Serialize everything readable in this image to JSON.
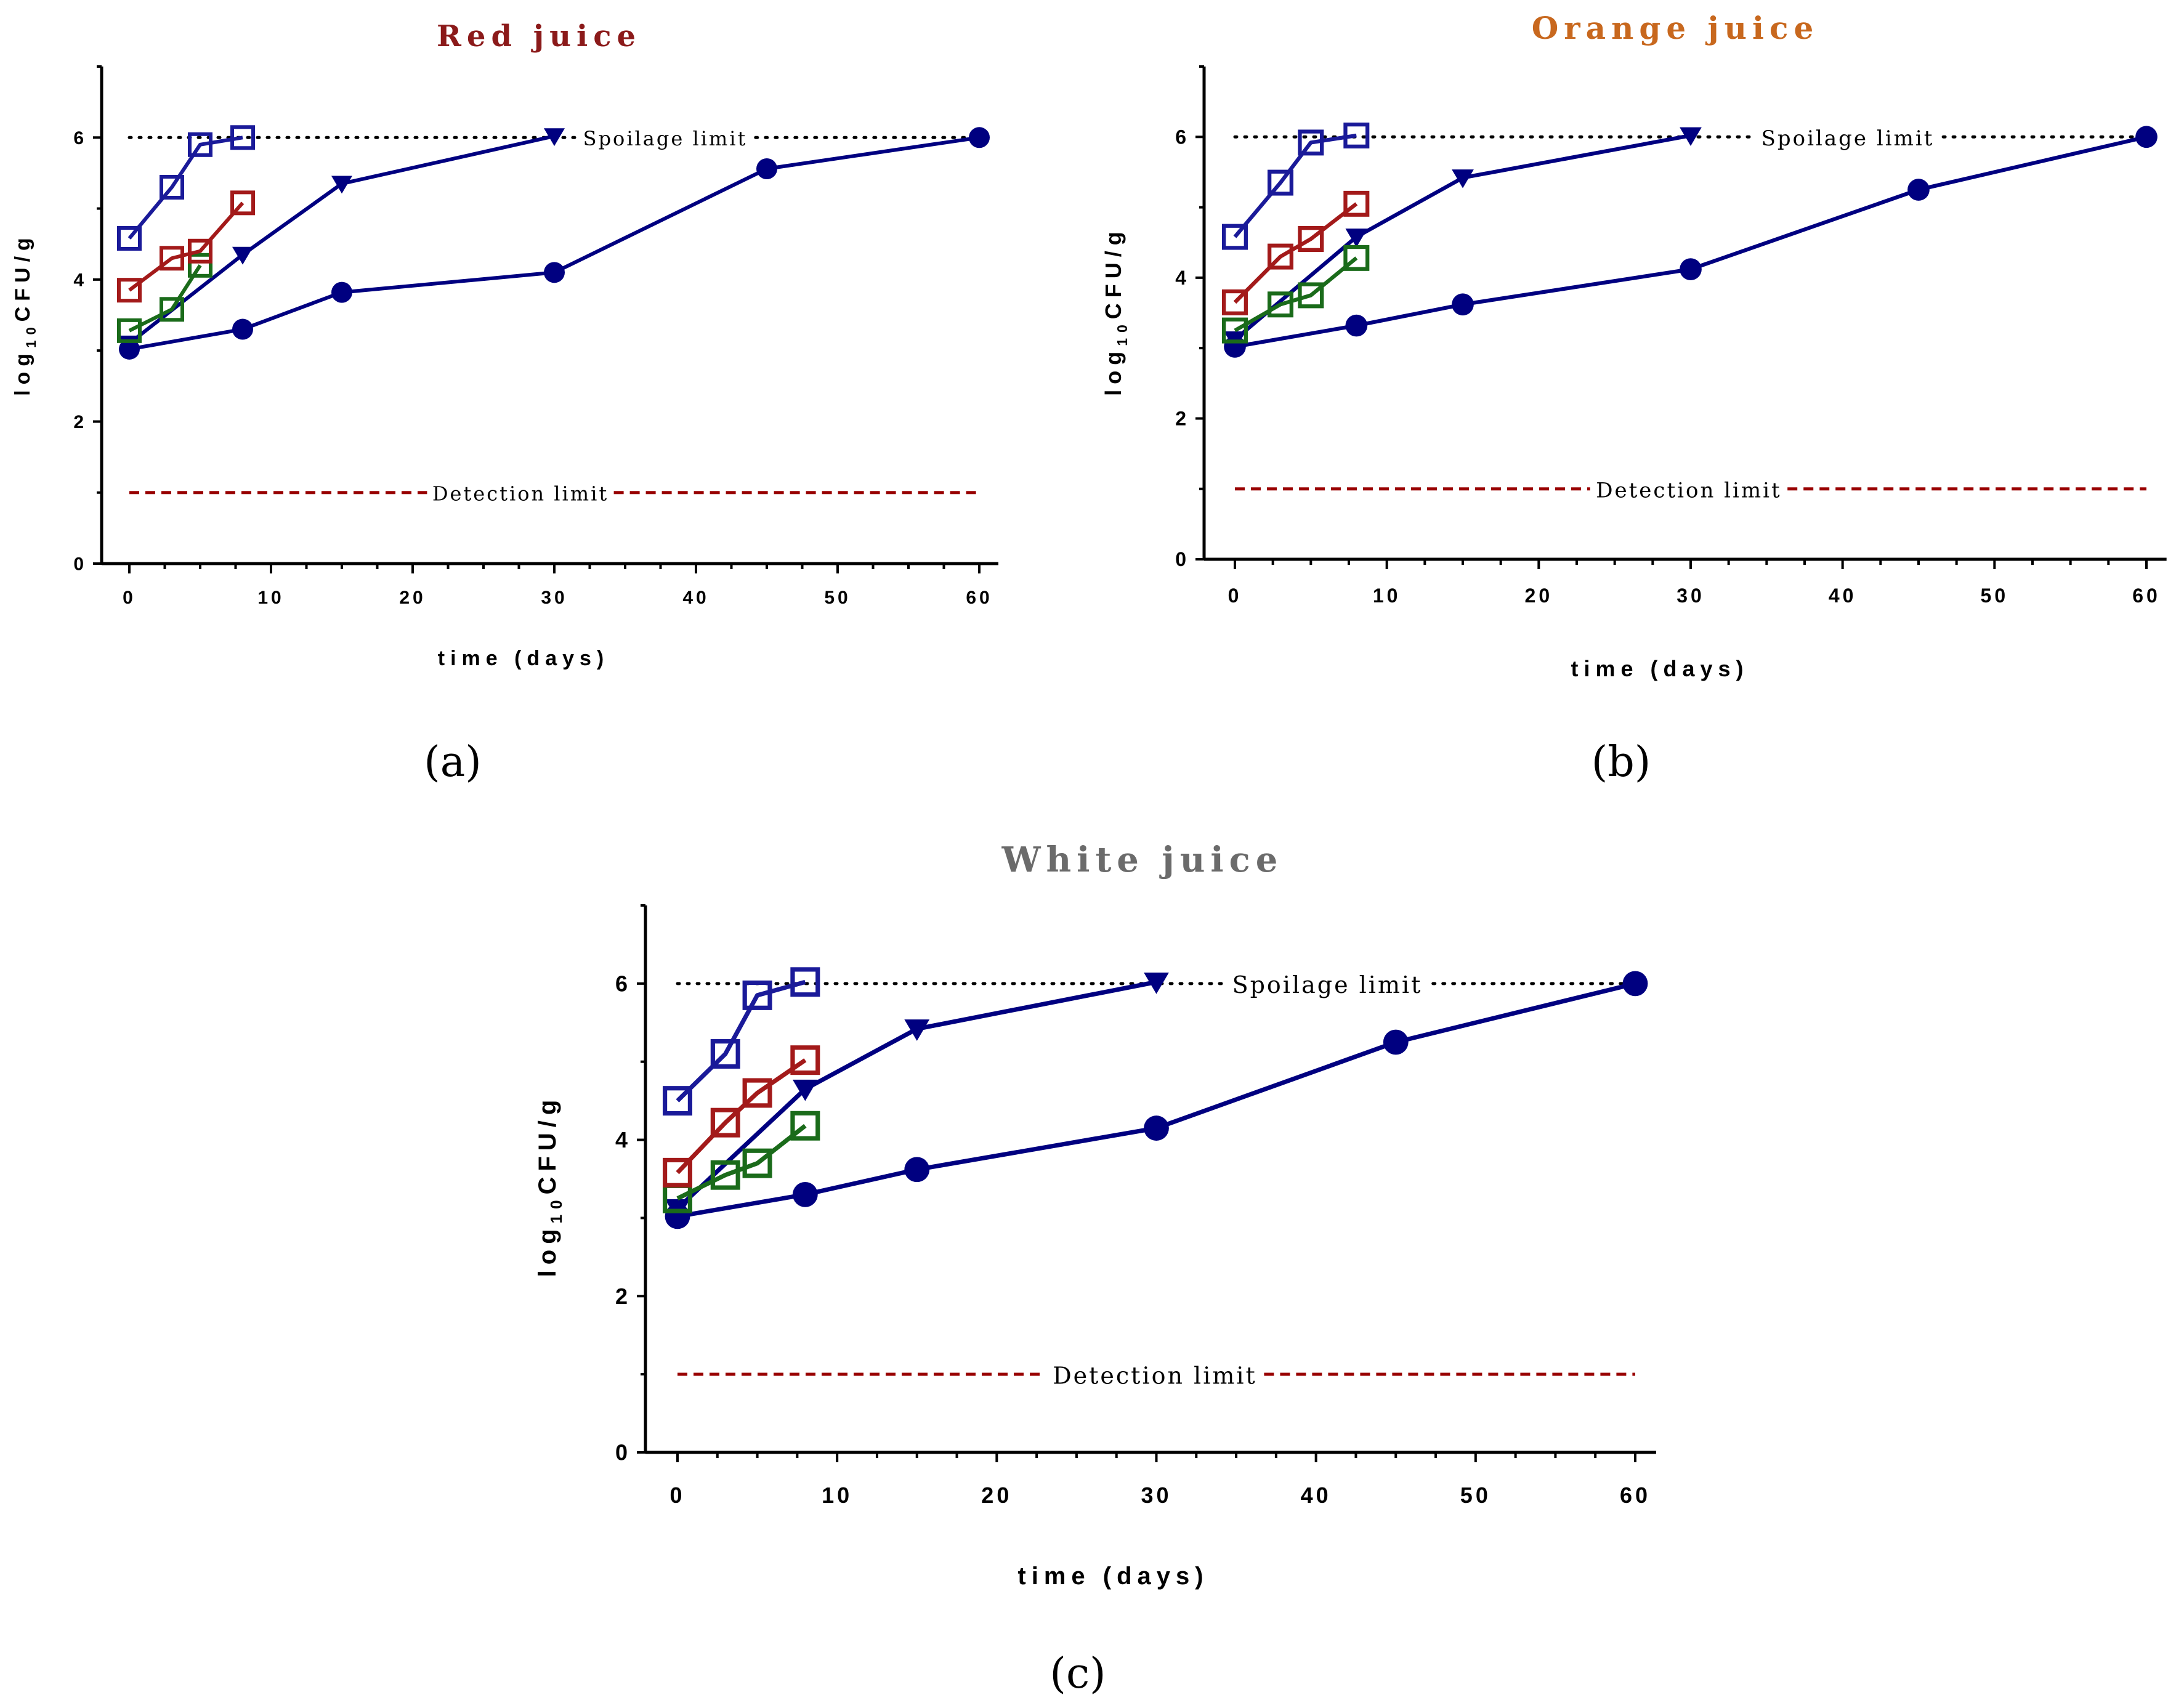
{
  "colors": {
    "axis": "#000000",
    "spoilage_line": "#000000",
    "detection_line": "#990000",
    "panel_titles": [
      "#8b1a1a",
      "#c8681e",
      "#6b6b6b"
    ]
  },
  "chart_data": [
    {
      "type": "line",
      "panel": "(a)",
      "title": "Red juice",
      "xlabel": "time (days)",
      "ylabel_prefix": "log",
      "ylabel_subscript": "10",
      "ylabel_suffix": "CFU/g",
      "xlim": [
        -2,
        61
      ],
      "ylim": [
        0,
        7
      ],
      "xticks": [
        0,
        10,
        20,
        30,
        40,
        50,
        60
      ],
      "yticks": [
        0,
        2,
        4,
        6
      ],
      "spoilage_limit": {
        "value": 6,
        "label": "Spoilage limit"
      },
      "detection_limit": {
        "value": 1,
        "label": "Detection limit"
      },
      "series": [
        {
          "marker": "circle",
          "color": "#000080",
          "x": [
            0,
            8,
            15,
            30,
            45,
            60
          ],
          "values": [
            3.02,
            3.3,
            3.82,
            4.1,
            5.56,
            6.0
          ]
        },
        {
          "marker": "triangle-down",
          "color": "#000080",
          "x": [
            0,
            8,
            15,
            30
          ],
          "values": [
            3.1,
            4.35,
            5.35,
            6.02
          ]
        },
        {
          "marker": "square-open",
          "color": "#1a6b1a",
          "x": [
            0,
            3,
            5
          ],
          "values": [
            3.28,
            3.58,
            4.2
          ]
        },
        {
          "marker": "square-open",
          "color": "#a31a1a",
          "x": [
            0,
            3,
            5,
            8
          ],
          "values": [
            3.85,
            4.3,
            4.4,
            5.08
          ]
        },
        {
          "marker": "square-open",
          "color": "#1a1a99",
          "x": [
            0,
            3,
            5,
            8
          ],
          "values": [
            4.58,
            5.3,
            5.9,
            6.0
          ]
        }
      ]
    },
    {
      "type": "line",
      "panel": "(b)",
      "title": "Orange juice",
      "xlabel": "time (days)",
      "ylabel_prefix": "log",
      "ylabel_subscript": "10",
      "ylabel_suffix": "CFU/g",
      "xlim": [
        -2,
        61
      ],
      "ylim": [
        0,
        7
      ],
      "xticks": [
        0,
        10,
        20,
        30,
        40,
        50,
        60
      ],
      "yticks": [
        0,
        2,
        4,
        6
      ],
      "spoilage_limit": {
        "value": 6,
        "label": "Spoilage limit"
      },
      "detection_limit": {
        "value": 1,
        "label": "Detection limit"
      },
      "series": [
        {
          "marker": "circle",
          "color": "#000080",
          "x": [
            0,
            8,
            15,
            30,
            45,
            60
          ],
          "values": [
            3.02,
            3.32,
            3.62,
            4.12,
            5.25,
            6.0
          ]
        },
        {
          "marker": "triangle-down",
          "color": "#000080",
          "x": [
            0,
            8,
            15,
            30
          ],
          "values": [
            3.12,
            4.58,
            5.42,
            6.02
          ]
        },
        {
          "marker": "square-open",
          "color": "#1a6b1a",
          "x": [
            0,
            3,
            5,
            8
          ],
          "values": [
            3.25,
            3.62,
            3.75,
            4.28
          ]
        },
        {
          "marker": "square-open",
          "color": "#a31a1a",
          "x": [
            0,
            3,
            5,
            8
          ],
          "values": [
            3.65,
            4.3,
            4.55,
            5.05
          ]
        },
        {
          "marker": "square-open",
          "color": "#1a1a99",
          "x": [
            0,
            3,
            5,
            8
          ],
          "values": [
            4.58,
            5.35,
            5.92,
            6.02
          ]
        }
      ]
    },
    {
      "type": "line",
      "panel": "(c)",
      "title": "White juice",
      "xlabel": "time (days)",
      "ylabel_prefix": "log",
      "ylabel_subscript": "10",
      "ylabel_suffix": "CFU/g",
      "xlim": [
        -2,
        61
      ],
      "ylim": [
        0,
        7
      ],
      "xticks": [
        0,
        10,
        20,
        30,
        40,
        50,
        60
      ],
      "yticks": [
        0,
        2,
        4,
        6
      ],
      "spoilage_limit": {
        "value": 6,
        "label": "Spoilage limit"
      },
      "detection_limit": {
        "value": 1,
        "label": "Detection limit"
      },
      "series": [
        {
          "marker": "circle",
          "color": "#000080",
          "x": [
            0,
            8,
            15,
            30,
            45,
            60
          ],
          "values": [
            3.02,
            3.3,
            3.62,
            4.15,
            5.25,
            6.0
          ]
        },
        {
          "marker": "triangle-down",
          "color": "#000080",
          "x": [
            0,
            8,
            15,
            30
          ],
          "values": [
            3.12,
            4.65,
            5.42,
            6.02
          ]
        },
        {
          "marker": "square-open",
          "color": "#1a6b1a",
          "x": [
            0,
            3,
            5,
            8
          ],
          "values": [
            3.25,
            3.55,
            3.7,
            4.18
          ]
        },
        {
          "marker": "square-open",
          "color": "#a31a1a",
          "x": [
            0,
            3,
            5,
            8
          ],
          "values": [
            3.58,
            4.22,
            4.6,
            5.02
          ]
        },
        {
          "marker": "square-open",
          "color": "#1a1a99",
          "x": [
            0,
            3,
            5,
            8
          ],
          "values": [
            4.5,
            5.1,
            5.85,
            6.02
          ]
        }
      ]
    }
  ]
}
